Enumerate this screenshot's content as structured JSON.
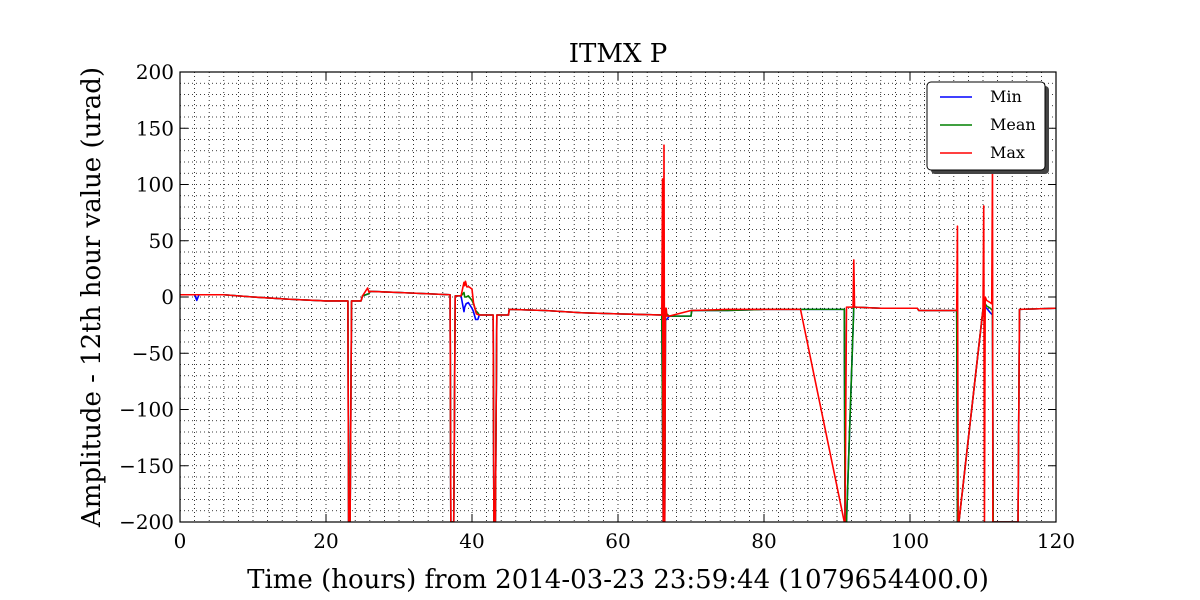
{
  "chart_data": {
    "type": "line",
    "title": "ITMX P",
    "xlabel": "Time (hours) from 2014-03-23 23:59:44 (1079654400.0)",
    "ylabel": "Amplitude - 12th hour value (urad)",
    "xlim": [
      0,
      120
    ],
    "ylim": [
      -200,
      200
    ],
    "xticks": [
      0,
      20,
      40,
      60,
      80,
      100,
      120
    ],
    "yticks": [
      -200,
      -150,
      -100,
      -50,
      0,
      50,
      100,
      150,
      200
    ],
    "xtick_labels": [
      "0",
      "20",
      "40",
      "60",
      "80",
      "100",
      "120"
    ],
    "ytick_labels": [
      "−200",
      "−150",
      "−100",
      "−50",
      "0",
      "50",
      "100",
      "150",
      "200"
    ],
    "grid": true,
    "legend_position": "top-right",
    "series": [
      {
        "name": "Min",
        "color": "#0000ff",
        "x": [
          0,
          2,
          2.3,
          2.6,
          6,
          10,
          15,
          20,
          23,
          23.1,
          23.3,
          23.5,
          24.8,
          25,
          25.9,
          26,
          30,
          37,
          37.1,
          37.5,
          37.7,
          38.5,
          38.9,
          39.0,
          39.2,
          39.5,
          40.0,
          40.2,
          40.5,
          40.8,
          41.0,
          42.9,
          43.0,
          43.2,
          43.4,
          45,
          45.1,
          50,
          55,
          60,
          66.0,
          66.2,
          66.4,
          66.5,
          66.7,
          67,
          70,
          70.1,
          75,
          80,
          85,
          91,
          91.1,
          91.3,
          92.3,
          92.5,
          96,
          101,
          101.2,
          106.4,
          106.5,
          106.7,
          110,
          110.2,
          110.5,
          111.0,
          111.3,
          111.4,
          111.6,
          114.8,
          115,
          120
        ],
        "y": [
          2,
          2,
          -3,
          2,
          2,
          0,
          -2,
          -3.5,
          -3.5,
          -200,
          -200,
          -3.5,
          -3.5,
          1,
          3,
          5,
          4,
          2,
          -200,
          -200,
          1,
          1,
          -13,
          -9,
          -6,
          -5,
          -10,
          -13,
          -20,
          -20,
          -16,
          -16,
          -200,
          -200,
          -16,
          -16,
          -11,
          -12,
          -14,
          -15,
          -16,
          -200,
          -200,
          -20,
          -20,
          -17,
          -17,
          -12,
          -12,
          -11,
          -11,
          -11,
          -200,
          -200,
          -9,
          -9,
          -10,
          -10,
          -12,
          -12,
          -200,
          -200,
          -11,
          -8,
          -10,
          -14,
          -16,
          -200,
          -200,
          -200,
          -11,
          -10
        ]
      },
      {
        "name": "Mean",
        "color": "#008000",
        "x": [
          0,
          2,
          6,
          10,
          15,
          20,
          23,
          23.1,
          23.3,
          23.5,
          24.8,
          25,
          25.9,
          26,
          30,
          37,
          37.1,
          37.5,
          37.7,
          38.5,
          38.9,
          39.0,
          39.2,
          39.5,
          40.0,
          40.2,
          40.5,
          40.8,
          41.0,
          42.9,
          43.0,
          43.2,
          43.4,
          45,
          45.1,
          50,
          55,
          60,
          66.0,
          66.2,
          66.4,
          66.5,
          66.7,
          67,
          70,
          70.1,
          75,
          80,
          85,
          91,
          91.1,
          91.3,
          92.3,
          92.5,
          96,
          101,
          101.2,
          106.4,
          106.5,
          106.7,
          110,
          110.2,
          110.5,
          111.0,
          111.3,
          111.4,
          111.6,
          114.8,
          115,
          120
        ],
        "y": [
          2,
          2,
          2,
          0,
          -2,
          -3.5,
          -3.5,
          -200,
          -200,
          -3.5,
          -3.5,
          1,
          3,
          5,
          4,
          2,
          -200,
          -200,
          1,
          1,
          4,
          0,
          0,
          1,
          -3,
          -6,
          -12,
          -14,
          -16,
          -16,
          -200,
          -200,
          -16,
          -16,
          -11,
          -12,
          -14,
          -15,
          -16,
          -200,
          -200,
          -15,
          -15,
          -17,
          -17,
          -12,
          -12,
          -11,
          -11,
          -11,
          -200,
          -200,
          -9,
          -9,
          -10,
          -10,
          -12,
          -12,
          -200,
          -200,
          -11,
          -5,
          -8,
          -10,
          -12,
          -200,
          -200,
          -200,
          -11,
          -10
        ]
      },
      {
        "name": "Max",
        "color": "#ff0000",
        "x": [
          0,
          2,
          6,
          10,
          15,
          20,
          23,
          23.1,
          23.3,
          23.5,
          24.8,
          25,
          25.7,
          25.9,
          26,
          30,
          37,
          37.1,
          37.5,
          37.7,
          38.5,
          38.9,
          39.0,
          39.1,
          39.3,
          39.6,
          40.0,
          40.2,
          40.4,
          40.6,
          41.0,
          42.9,
          43.0,
          43.2,
          43.4,
          45,
          45.1,
          50,
          55,
          60,
          66.0,
          66.1,
          66.2,
          66.3,
          66.4,
          66.5,
          66.6,
          66.7,
          67,
          70,
          70.1,
          75,
          80,
          85,
          91,
          91.1,
          91.3,
          92.2,
          92.3,
          92.4,
          92.5,
          96,
          101,
          101.2,
          106.4,
          106.5,
          106.6,
          106.7,
          110.0,
          110.1,
          110.2,
          110.3,
          110.5,
          111.0,
          111.2,
          111.3,
          111.35,
          111.4,
          111.6,
          114.8,
          115,
          120
        ],
        "y": [
          2,
          2,
          2,
          0,
          -2,
          -3.5,
          -3.5,
          -200,
          -200,
          -3.5,
          -3.5,
          1,
          8,
          4,
          5,
          4,
          2,
          -200,
          -200,
          1,
          1,
          13,
          10,
          14,
          9,
          9,
          7,
          -5,
          -10,
          -15,
          -16,
          -16,
          -200,
          -200,
          -16,
          -16,
          -11,
          -12,
          -14,
          -15,
          -16,
          105,
          -200,
          135,
          -200,
          -10,
          -10,
          -17,
          -17,
          -12,
          -12,
          -11,
          -11,
          -11,
          -200,
          -200,
          -9,
          -9,
          33,
          -9,
          -9,
          -10,
          -10,
          -12,
          -12,
          63,
          -200,
          -200,
          -11,
          81,
          -200,
          0,
          -3,
          -5,
          -6,
          120,
          -200,
          -200,
          -200,
          -200,
          -11,
          -10
        ]
      }
    ]
  }
}
